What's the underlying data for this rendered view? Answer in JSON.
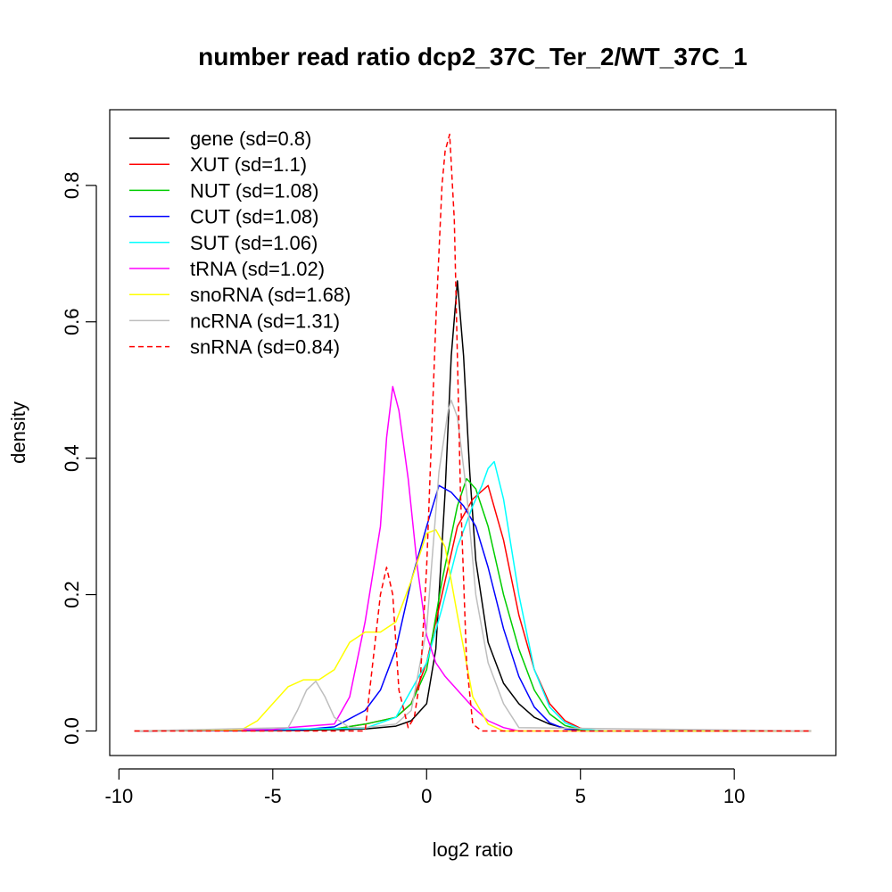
{
  "chart_data": {
    "type": "line",
    "title": "number read ratio dcp2_37C_Ter_2/WT_37C_1",
    "xlabel": "log2 ratio",
    "ylabel": "density",
    "xlim": [
      -10.3,
      13.3
    ],
    "ylim": [
      -0.036,
      0.911
    ],
    "xticks": [
      -10,
      -5,
      0,
      5,
      10
    ],
    "xtick_labels": [
      "-10",
      "-5",
      "0",
      "5",
      "10"
    ],
    "yticks": [
      0.0,
      0.2,
      0.4,
      0.6,
      0.8
    ],
    "ytick_labels": [
      "0.0",
      "0.2",
      "0.4",
      "0.6",
      "0.8"
    ],
    "grid": false,
    "legend_position": "top-left",
    "series": [
      {
        "name": "gene (sd=0.8)",
        "color": "#000000",
        "dash": false,
        "x": [
          -9.5,
          -4,
          -2,
          -1,
          -0.5,
          0,
          0.3,
          0.6,
          0.8,
          1.0,
          1.2,
          1.4,
          1.6,
          2.0,
          2.5,
          3.0,
          3.5,
          4.0,
          4.5,
          5.0,
          5.5,
          12.5
        ],
        "y": [
          0,
          0.001,
          0.003,
          0.007,
          0.015,
          0.04,
          0.12,
          0.35,
          0.55,
          0.66,
          0.55,
          0.38,
          0.25,
          0.13,
          0.07,
          0.04,
          0.02,
          0.01,
          0.004,
          0.001,
          0,
          0
        ]
      },
      {
        "name": "XUT (sd=1.1)",
        "color": "#ff0000",
        "dash": false,
        "x": [
          -9.5,
          -3,
          -2,
          -1,
          -0.5,
          0,
          0.5,
          1.0,
          1.5,
          2.0,
          2.5,
          3.0,
          3.5,
          4.0,
          4.5,
          5.0,
          5.5,
          12.5
        ],
        "y": [
          0,
          0.003,
          0.01,
          0.02,
          0.04,
          0.1,
          0.2,
          0.3,
          0.34,
          0.36,
          0.28,
          0.17,
          0.09,
          0.04,
          0.015,
          0.004,
          0,
          0
        ]
      },
      {
        "name": "NUT (sd=1.08)",
        "color": "#00cd00",
        "dash": false,
        "x": [
          -9.5,
          -3,
          -2,
          -1,
          -0.5,
          0,
          0.5,
          1.0,
          1.3,
          1.6,
          2.0,
          2.5,
          3.0,
          3.5,
          4.0,
          4.5,
          5.0,
          5.5,
          12.5
        ],
        "y": [
          0,
          0.003,
          0.01,
          0.02,
          0.04,
          0.09,
          0.22,
          0.33,
          0.37,
          0.355,
          0.3,
          0.2,
          0.12,
          0.06,
          0.025,
          0.008,
          0.002,
          0,
          0
        ]
      },
      {
        "name": "CUT (sd=1.08)",
        "color": "#0000ff",
        "dash": false,
        "x": [
          -9.5,
          -4,
          -3,
          -2,
          -1.5,
          -1,
          -0.5,
          0,
          0.4,
          0.8,
          1.2,
          1.6,
          2.0,
          2.5,
          3.0,
          3.5,
          4.0,
          4.5,
          5.0,
          12.5
        ],
        "y": [
          0,
          0.002,
          0.006,
          0.03,
          0.06,
          0.12,
          0.22,
          0.3,
          0.36,
          0.35,
          0.33,
          0.3,
          0.24,
          0.15,
          0.08,
          0.035,
          0.012,
          0.003,
          0,
          0
        ]
      },
      {
        "name": "SUT (sd=1.06)",
        "color": "#00ffff",
        "dash": false,
        "x": [
          -9.5,
          -2,
          -1,
          0,
          0.5,
          1.0,
          1.5,
          1.8,
          2.0,
          2.2,
          2.5,
          3.0,
          3.5,
          4.0,
          4.5,
          5.0,
          5.5,
          6.0,
          12.5
        ],
        "y": [
          0,
          0.004,
          0.02,
          0.1,
          0.18,
          0.27,
          0.33,
          0.36,
          0.385,
          0.395,
          0.34,
          0.2,
          0.09,
          0.035,
          0.012,
          0.003,
          0.001,
          0,
          0
        ]
      },
      {
        "name": "tRNA (sd=1.02)",
        "color": "#ff00ff",
        "dash": false,
        "x": [
          -9.5,
          -5,
          -4.5,
          -3,
          -2.5,
          -2,
          -1.5,
          -1.3,
          -1.1,
          -0.9,
          -0.6,
          -0.3,
          0,
          0.3,
          0.6,
          1.0,
          1.5,
          2.0,
          2.5,
          3.0,
          12.5
        ],
        "y": [
          0,
          0.002,
          0.005,
          0.01,
          0.05,
          0.16,
          0.3,
          0.43,
          0.505,
          0.47,
          0.37,
          0.24,
          0.14,
          0.1,
          0.08,
          0.06,
          0.035,
          0.015,
          0.005,
          0,
          0
        ]
      },
      {
        "name": "snoRNA (sd=1.68)",
        "color": "#ffff00",
        "dash": false,
        "x": [
          -9.5,
          -6,
          -5.5,
          -5,
          -4.5,
          -4,
          -3.5,
          -3,
          -2.5,
          -2,
          -1.5,
          -1,
          -0.5,
          0,
          0.3,
          0.6,
          1.0,
          1.5,
          2.0,
          2.5,
          12.5
        ],
        "y": [
          0,
          0.002,
          0.015,
          0.04,
          0.065,
          0.075,
          0.075,
          0.09,
          0.13,
          0.145,
          0.145,
          0.16,
          0.22,
          0.29,
          0.295,
          0.27,
          0.17,
          0.05,
          0.01,
          0,
          0
        ]
      },
      {
        "name": "ncRNA (sd=1.31)",
        "color": "#bebebe",
        "dash": false,
        "x": [
          -9.5,
          -4.5,
          -4.2,
          -3.9,
          -3.6,
          -3.3,
          -3.0,
          -2.5,
          -2,
          -1,
          -0.5,
          0,
          0.4,
          0.7,
          0.8,
          1.0,
          1.3,
          1.6,
          2.0,
          2.5,
          3.0,
          12.5
        ],
        "y": [
          0,
          0.005,
          0.03,
          0.06,
          0.073,
          0.05,
          0.02,
          0.005,
          0.005,
          0.01,
          0.03,
          0.15,
          0.38,
          0.47,
          0.485,
          0.46,
          0.35,
          0.2,
          0.1,
          0.04,
          0.005,
          0
        ]
      },
      {
        "name": "snRNA (sd=0.84)",
        "color": "#ff0000",
        "dash": true,
        "x": [
          -9.5,
          -2,
          -1.8,
          -1.5,
          -1.3,
          -1.1,
          -0.9,
          -0.6,
          -0.4,
          -0.2,
          0,
          0.3,
          0.5,
          0.6,
          0.75,
          0.9,
          1.1,
          1.3,
          1.5,
          1.8,
          12.5
        ],
        "y": [
          0,
          0,
          0.08,
          0.2,
          0.24,
          0.2,
          0.06,
          0.005,
          0.02,
          0.08,
          0.24,
          0.6,
          0.8,
          0.85,
          0.875,
          0.75,
          0.35,
          0.1,
          0.01,
          0,
          0
        ]
      }
    ]
  }
}
